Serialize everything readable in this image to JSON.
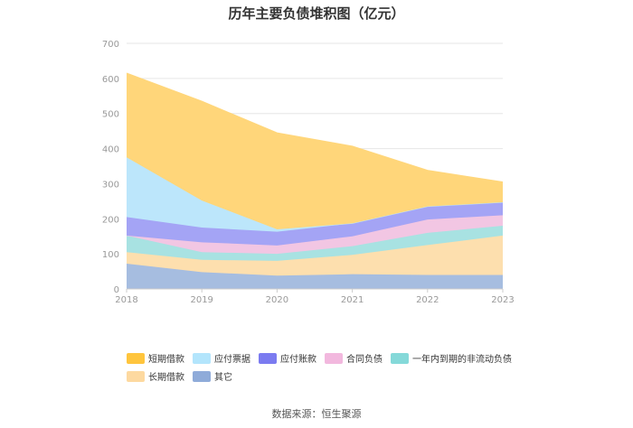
{
  "title": "历年主要负债堆积图（亿元）",
  "source": "数据来源：恒生聚源",
  "chart_data": {
    "type": "area",
    "stacked": true,
    "x": [
      "2018",
      "2019",
      "2020",
      "2021",
      "2022",
      "2023"
    ],
    "ylim": [
      0,
      700
    ],
    "yticks": [
      0,
      100,
      200,
      300,
      400,
      500,
      600,
      700
    ],
    "grid": true,
    "legend_position": "bottom",
    "series": [
      {
        "name": "其它",
        "color": "#a6bde0",
        "values": [
          72,
          48,
          38,
          42,
          40,
          40
        ]
      },
      {
        "name": "长期借款",
        "color": "#fddfae",
        "values": [
          33,
          35,
          42,
          55,
          85,
          112
        ]
      },
      {
        "name": "一年内到期的非流动负债",
        "color": "#a8e2e2",
        "values": [
          47,
          22,
          20,
          25,
          35,
          28
        ]
      },
      {
        "name": "合同负债",
        "color": "#f2c6e3",
        "values": [
          0,
          28,
          24,
          28,
          38,
          30
        ]
      },
      {
        "name": "应付账款",
        "color": "#a4a4f5",
        "values": [
          53,
          42,
          39,
          37,
          37,
          37
        ]
      },
      {
        "name": "应付票据",
        "color": "#bce6fb",
        "values": [
          170,
          77,
          7,
          0,
          0,
          0
        ]
      },
      {
        "name": "短期借款",
        "color": "#ffd67a",
        "values": [
          240,
          283,
          275,
          220,
          103,
          58
        ]
      }
    ],
    "legend": [
      {
        "name": "短期借款",
        "color": "#ffc53d"
      },
      {
        "name": "应付票据",
        "color": "#b3e5fc"
      },
      {
        "name": "应付账款",
        "color": "#7b7bf0"
      },
      {
        "name": "合同负债",
        "color": "#f2b8de"
      },
      {
        "name": "一年内到期的非流动负债",
        "color": "#85d9d9"
      },
      {
        "name": "长期借款",
        "color": "#fdd9a0"
      },
      {
        "name": "其它",
        "color": "#8fabd9"
      }
    ]
  }
}
